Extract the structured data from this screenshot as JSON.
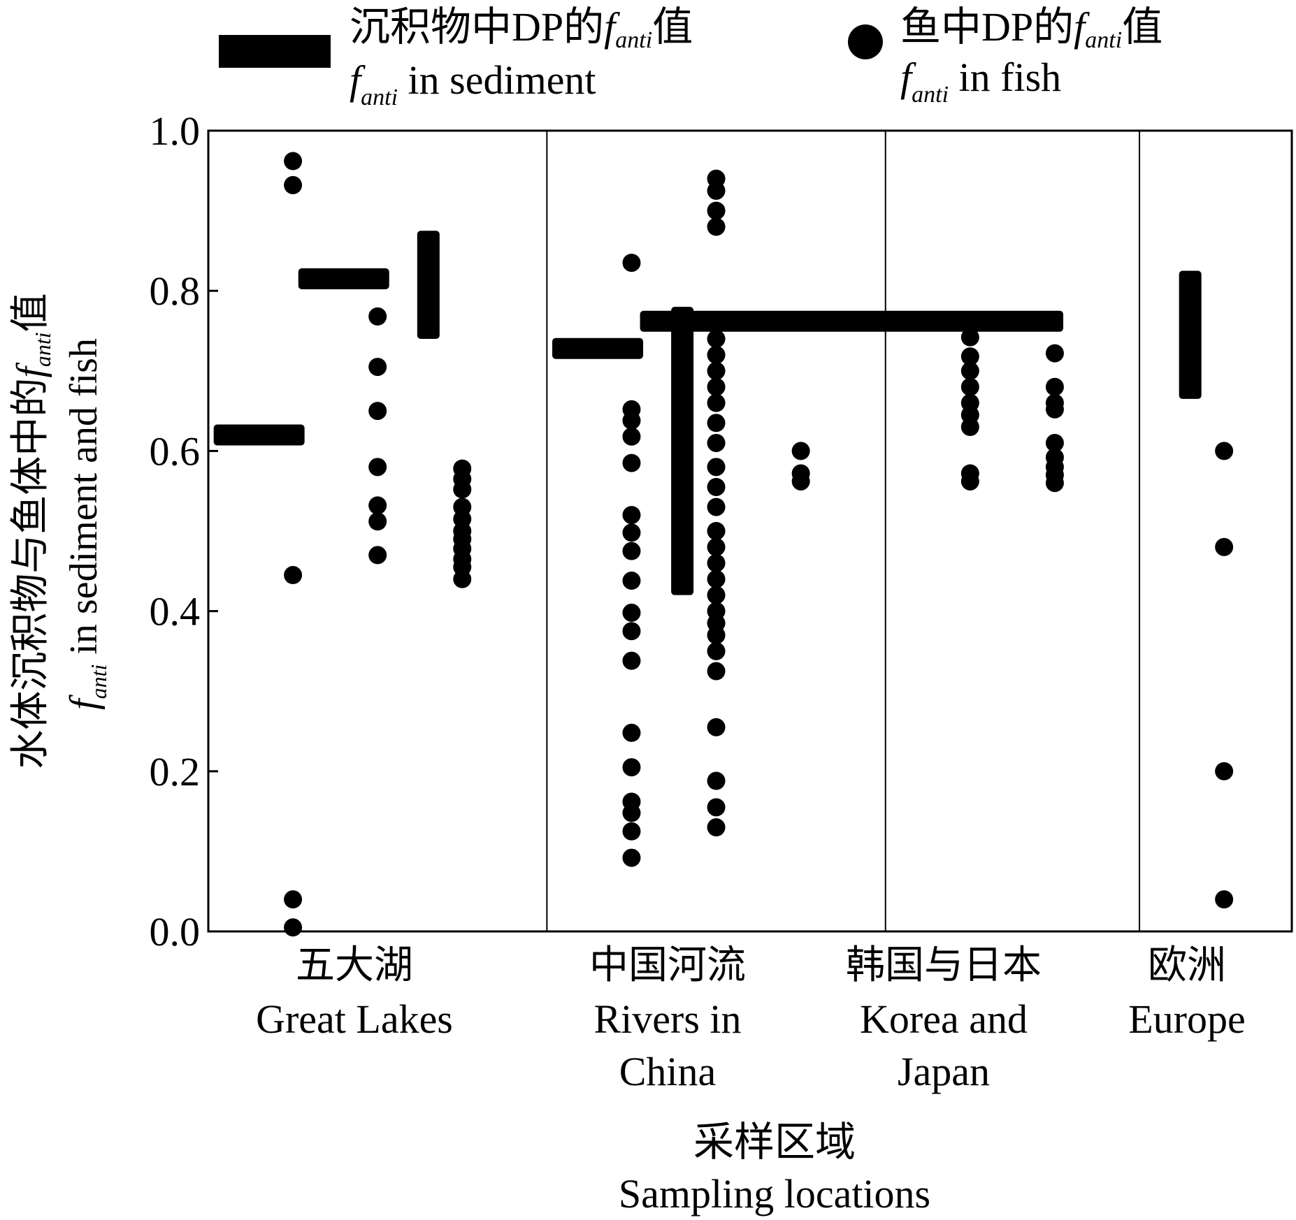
{
  "chart_data": {
    "type": "scatter",
    "legend": {
      "placement": "top",
      "sediment": {
        "cn": "沉积物中DP的",
        "italic": "f",
        "sub": "anti",
        "cn_suffix": "值",
        "en_italic": "f",
        "en_sub": "anti",
        "en_text": " in sediment"
      },
      "fish": {
        "cn": "鱼中DP的",
        "italic": "f",
        "sub": "anti",
        "cn_suffix": "值",
        "en_italic": "f",
        "en_sub": "anti",
        "en_text": " in fish"
      }
    },
    "ylabel": {
      "cn": "水体沉积物与鱼体中的",
      "italic": "f",
      "sub": "anti",
      "cn_suffix": "值",
      "en_italic": "f",
      "en_sub": "anti",
      "en_text": " in sediment and fish"
    },
    "xlabel": {
      "cn": "采样区域",
      "en": "Sampling locations"
    },
    "ylim": [
      0,
      1.0
    ],
    "yticks": [
      "0.0",
      "0.2",
      "0.4",
      "0.6",
      "0.8",
      "1.0"
    ],
    "ytick_values": [
      0,
      0.2,
      0.4,
      0.6,
      0.8,
      1.0
    ],
    "grid": false,
    "regions": [
      {
        "cn": "五大湖",
        "en": [
          "Great Lakes"
        ]
      },
      {
        "cn": "中国河流",
        "en": [
          "Rivers in",
          "China"
        ]
      },
      {
        "cn": "韩国与日本",
        "en": [
          "Korea and",
          "Japan"
        ]
      },
      {
        "cn": "欧洲",
        "en": [
          "Europe"
        ]
      }
    ],
    "series": [
      {
        "name": "fanti in sediment",
        "marker": "bar",
        "points": [
          {
            "x": 0.6,
            "y": 0.62
          },
          {
            "x": 1.6,
            "y": 0.815
          },
          {
            "x": 2.6,
            "y_low": 0.74,
            "y_high": 0.875
          },
          {
            "x": 4.6,
            "y": 0.728
          },
          {
            "x": 5.6,
            "y_low": 0.42,
            "y_high": 0.78
          },
          {
            "x_low": 5.1,
            "x_high": 10.1,
            "y": 0.762
          },
          {
            "x": 11.6,
            "y_low": 0.665,
            "y_high": 0.825
          }
        ]
      },
      {
        "name": "fanti in fish",
        "marker": "circle",
        "groups": [
          {
            "x": 1.0,
            "y": [
              0.962,
              0.932,
              0.445,
              0.04,
              0.005
            ]
          },
          {
            "x": 2.0,
            "y": [
              0.768,
              0.705,
              0.65,
              0.58,
              0.532,
              0.512,
              0.47
            ]
          },
          {
            "x": 3.0,
            "y": [
              0.578,
              0.565,
              0.552,
              0.53,
              0.515,
              0.5,
              0.49,
              0.478,
              0.465,
              0.455,
              0.44
            ]
          },
          {
            "x": 5.0,
            "y": [
              0.835,
              0.652,
              0.638,
              0.618,
              0.585,
              0.52,
              0.498,
              0.475,
              0.438,
              0.398,
              0.375,
              0.338,
              0.248,
              0.205,
              0.162,
              0.148,
              0.125,
              0.092
            ]
          },
          {
            "x": 6.0,
            "y": [
              0.94,
              0.925,
              0.9,
              0.88,
              0.74,
              0.72,
              0.7,
              0.68,
              0.66,
              0.635,
              0.61,
              0.58,
              0.555,
              0.53,
              0.5,
              0.48,
              0.46,
              0.44,
              0.42,
              0.4,
              0.385,
              0.37,
              0.35,
              0.325,
              0.255,
              0.188,
              0.155,
              0.13
            ]
          },
          {
            "x": 7.0,
            "y": [
              0.6,
              0.572,
              0.562
            ]
          },
          {
            "x": 9.0,
            "y": [
              0.742,
              0.718,
              0.7,
              0.68,
              0.66,
              0.645,
              0.63,
              0.572,
              0.562
            ]
          },
          {
            "x": 10.0,
            "y": [
              0.722,
              0.68,
              0.66,
              0.652,
              0.61,
              0.592,
              0.58,
              0.57,
              0.56
            ]
          },
          {
            "x": 12.0,
            "y": [
              0.6,
              0.48,
              0.2,
              0.04
            ]
          }
        ]
      }
    ]
  }
}
